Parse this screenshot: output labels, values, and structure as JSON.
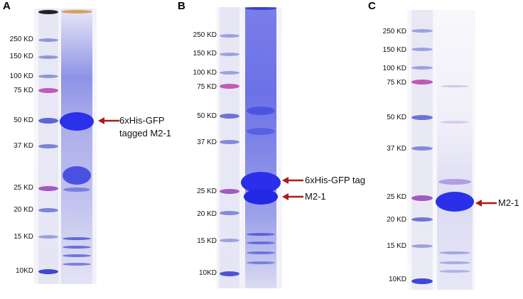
{
  "panels": [
    {
      "letter": "A",
      "ladder_labels": [
        "250 KD",
        "150 KD",
        "100 KD",
        "75 KD",
        "50 KD",
        "37 KD",
        "25 KD",
        "20 KD",
        "15 KD",
        "10KD"
      ],
      "annotations": [
        {
          "line1": "6xHis-GFP",
          "line2": "tagged M2-1"
        }
      ]
    },
    {
      "letter": "B",
      "ladder_labels": [
        "250 KD",
        "150 KD",
        "100 KD",
        "75 KD",
        "50 KD",
        "37 KD",
        "25 KD",
        "20 KD",
        "15 KD",
        "10KD"
      ],
      "annotations": [
        {
          "line1": "6xHis-GFP tag"
        },
        {
          "line1": "M2-1"
        }
      ]
    },
    {
      "letter": "C",
      "ladder_labels": [
        "250 KD",
        "150 KD",
        "100 KD",
        "75 KD",
        "50 KD",
        "37 KD",
        "25 KD",
        "20 KD",
        "15 KD",
        "10KD"
      ],
      "annotations": [
        {
          "line1": "M2-1"
        }
      ]
    }
  ],
  "colors": {
    "arrow": "#b01818",
    "ladder_band": "#6f78d8",
    "ladder_pink_band": "#c05ab8",
    "stain": "#3b3ff0"
  }
}
